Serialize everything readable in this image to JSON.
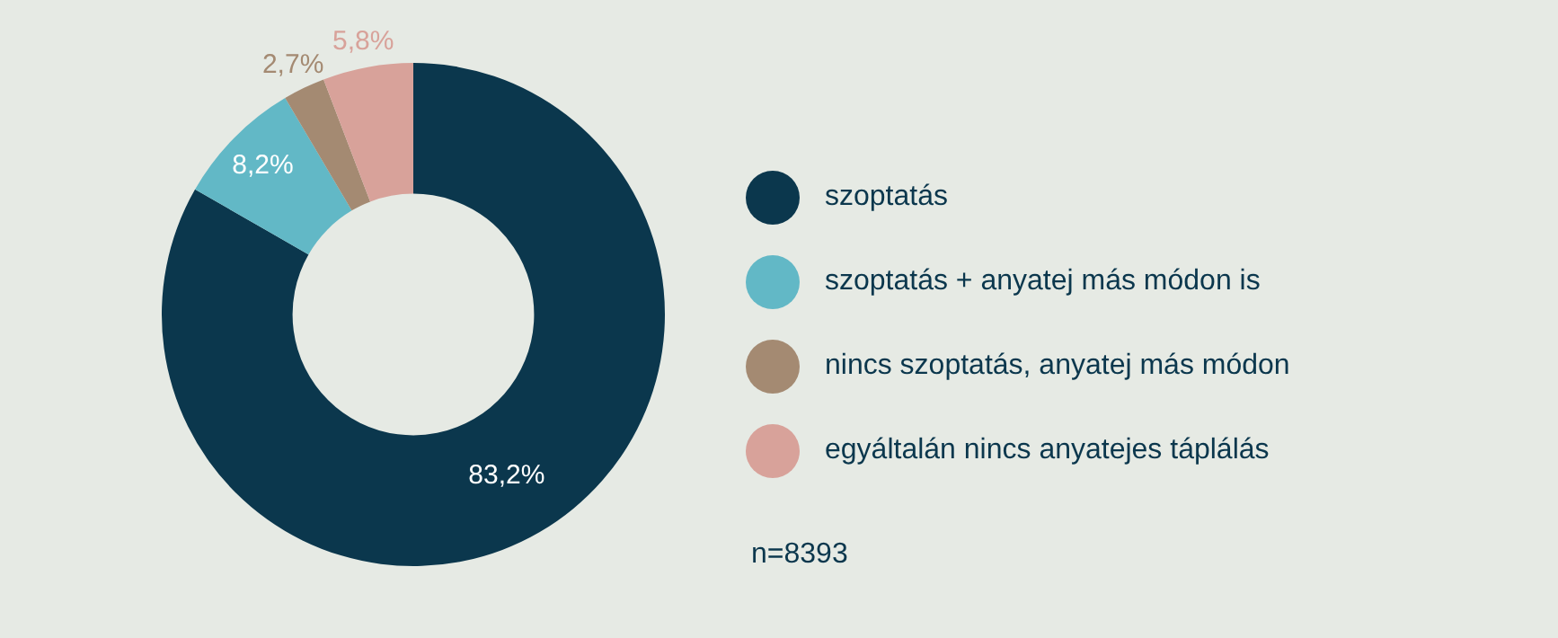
{
  "chart_data": {
    "type": "donut",
    "categories": [
      "szoptatás",
      "szoptatás + anyatej más módon is",
      "nincs szoptatás, anyatej más módon",
      "egyáltalán nincs anyatejes táplálás"
    ],
    "values": [
      83.2,
      8.2,
      2.7,
      5.8
    ],
    "colors": [
      "#0b374d",
      "#62b8c6",
      "#a48a72",
      "#d8a29a"
    ],
    "value_labels": [
      "83,2%",
      "8,2%",
      "2,7%",
      "5,8%"
    ],
    "legend": "right",
    "annotations": [
      "n=8393"
    ]
  }
}
